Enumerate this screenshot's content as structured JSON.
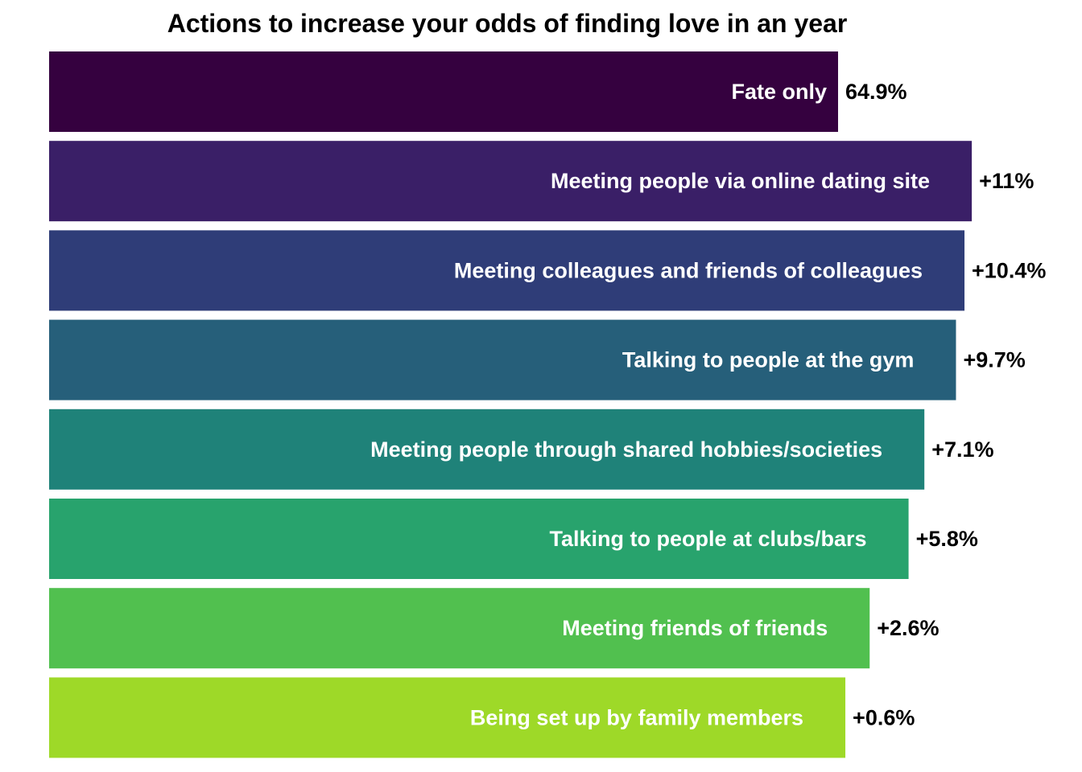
{
  "chart_data": {
    "type": "bar",
    "orientation": "horizontal",
    "title": "Actions to increase your odds of finding love in an year",
    "xlabel": "",
    "ylabel": "",
    "grid": false,
    "legend": "none",
    "xlim": [
      0,
      78
    ],
    "categories": [
      "Fate only",
      "Meeting people via online dating site",
      "Meeting colleagues and friends of colleagues",
      "Talking to people at the gym",
      "Meeting people through shared hobbies/societies",
      "Talking to people at clubs/bars",
      "Meeting friends of friends",
      "Being set up by family members"
    ],
    "values": [
      64.9,
      75.9,
      75.3,
      74.6,
      72.0,
      70.7,
      67.5,
      65.5
    ],
    "value_labels": [
      "64.9%",
      "+11%",
      "+10.4%",
      "+9.7%",
      "+7.1%",
      "+5.8%",
      "+2.6%",
      "+0.6%"
    ],
    "colors": [
      "#35013f",
      "#3a1f67",
      "#2f3d78",
      "#265f7a",
      "#1f8279",
      "#28a36d",
      "#51c04f",
      "#9ed928"
    ]
  }
}
